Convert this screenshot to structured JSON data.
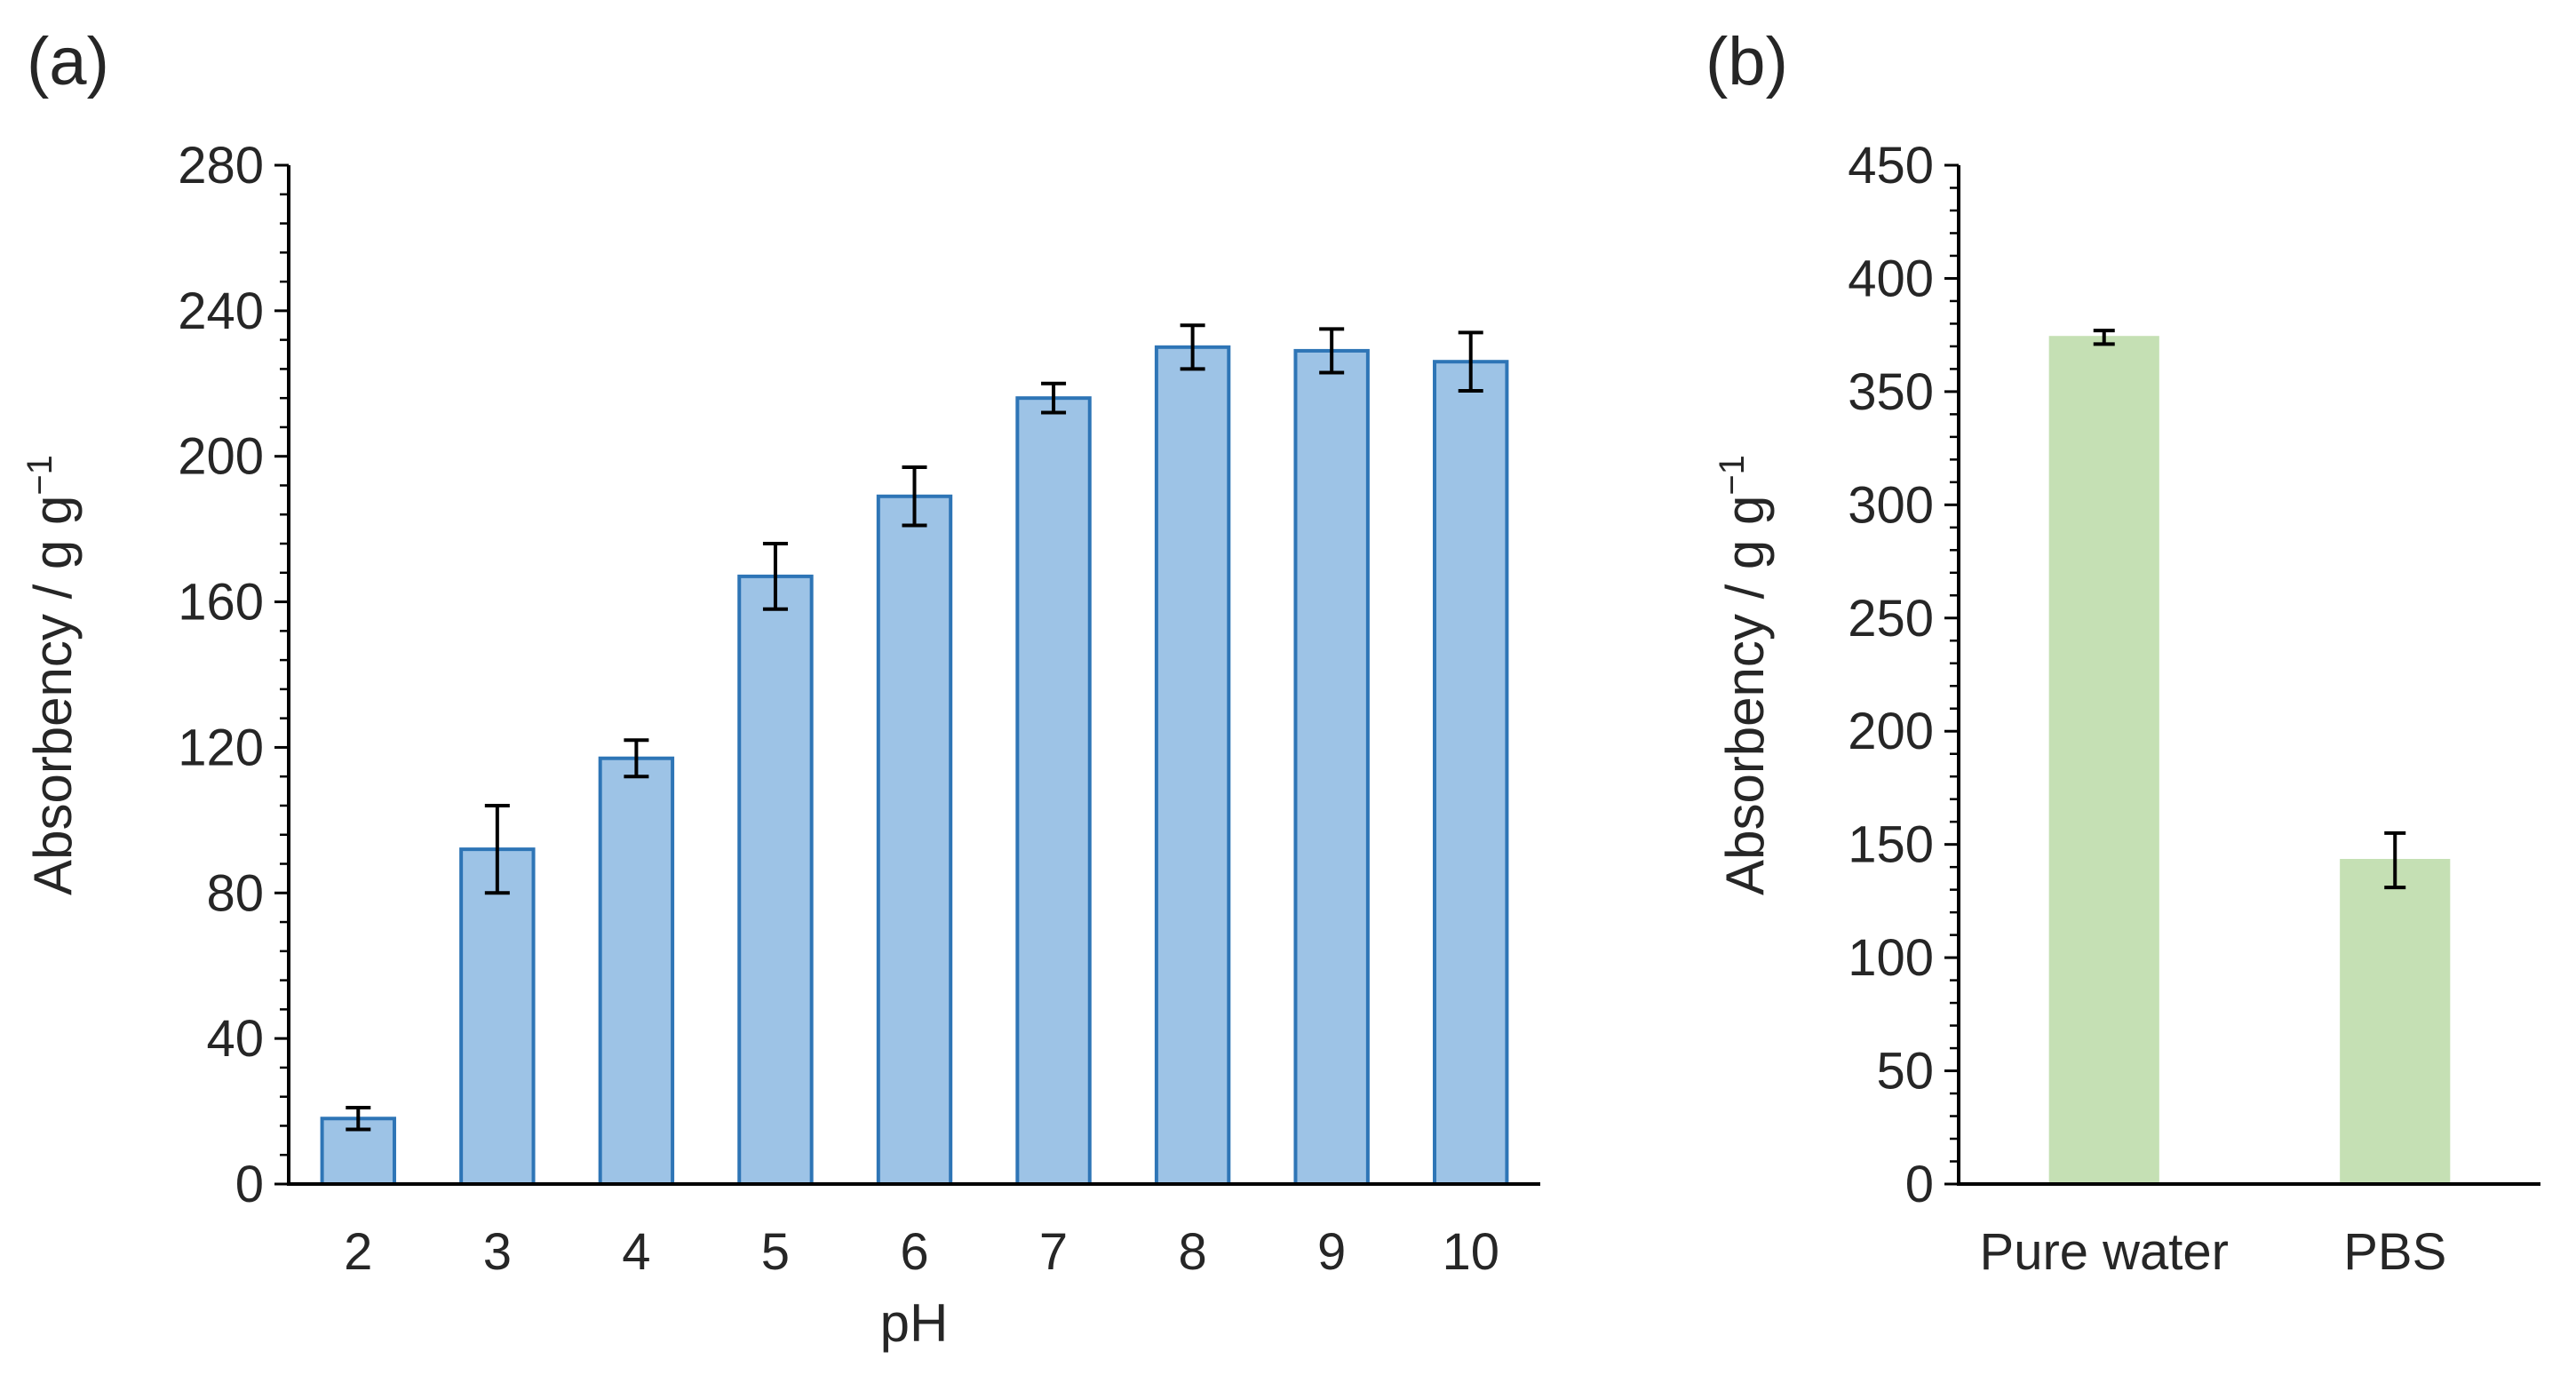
{
  "chart_data": [
    {
      "type": "bar",
      "panel_label": "(a)",
      "xlabel": "pH",
      "ylabel": "Absorbency / g g",
      "ylabel_superscript": "−1",
      "categories": [
        "2",
        "3",
        "4",
        "5",
        "6",
        "7",
        "8",
        "9",
        "10"
      ],
      "values": [
        18,
        92,
        117,
        167,
        189,
        216,
        230,
        229,
        226
      ],
      "errors": [
        3,
        12,
        5,
        9,
        8,
        4,
        6,
        6,
        8
      ],
      "ylim": [
        0,
        280
      ],
      "yticks": [
        0,
        40,
        80,
        120,
        160,
        200,
        240,
        280
      ],
      "minor_ticks_per_major": 4,
      "grid": false,
      "legend": "none",
      "colors": {
        "fill": "#9DC3E6",
        "stroke": "#2E75B6"
      }
    },
    {
      "type": "bar",
      "panel_label": "(b)",
      "xlabel": "",
      "ylabel": "Absorbency / g g",
      "ylabel_superscript": "−1",
      "categories": [
        "Pure water",
        "PBS"
      ],
      "values": [
        374,
        143
      ],
      "errors": [
        3,
        12
      ],
      "ylim": [
        0,
        450
      ],
      "yticks": [
        0,
        50,
        100,
        150,
        200,
        250,
        300,
        350,
        400,
        450
      ],
      "minor_ticks_per_major": 4,
      "grid": false,
      "legend": "none",
      "colors": {
        "fill": "#C5E0B4",
        "stroke": "#C5E0B4"
      }
    }
  ]
}
